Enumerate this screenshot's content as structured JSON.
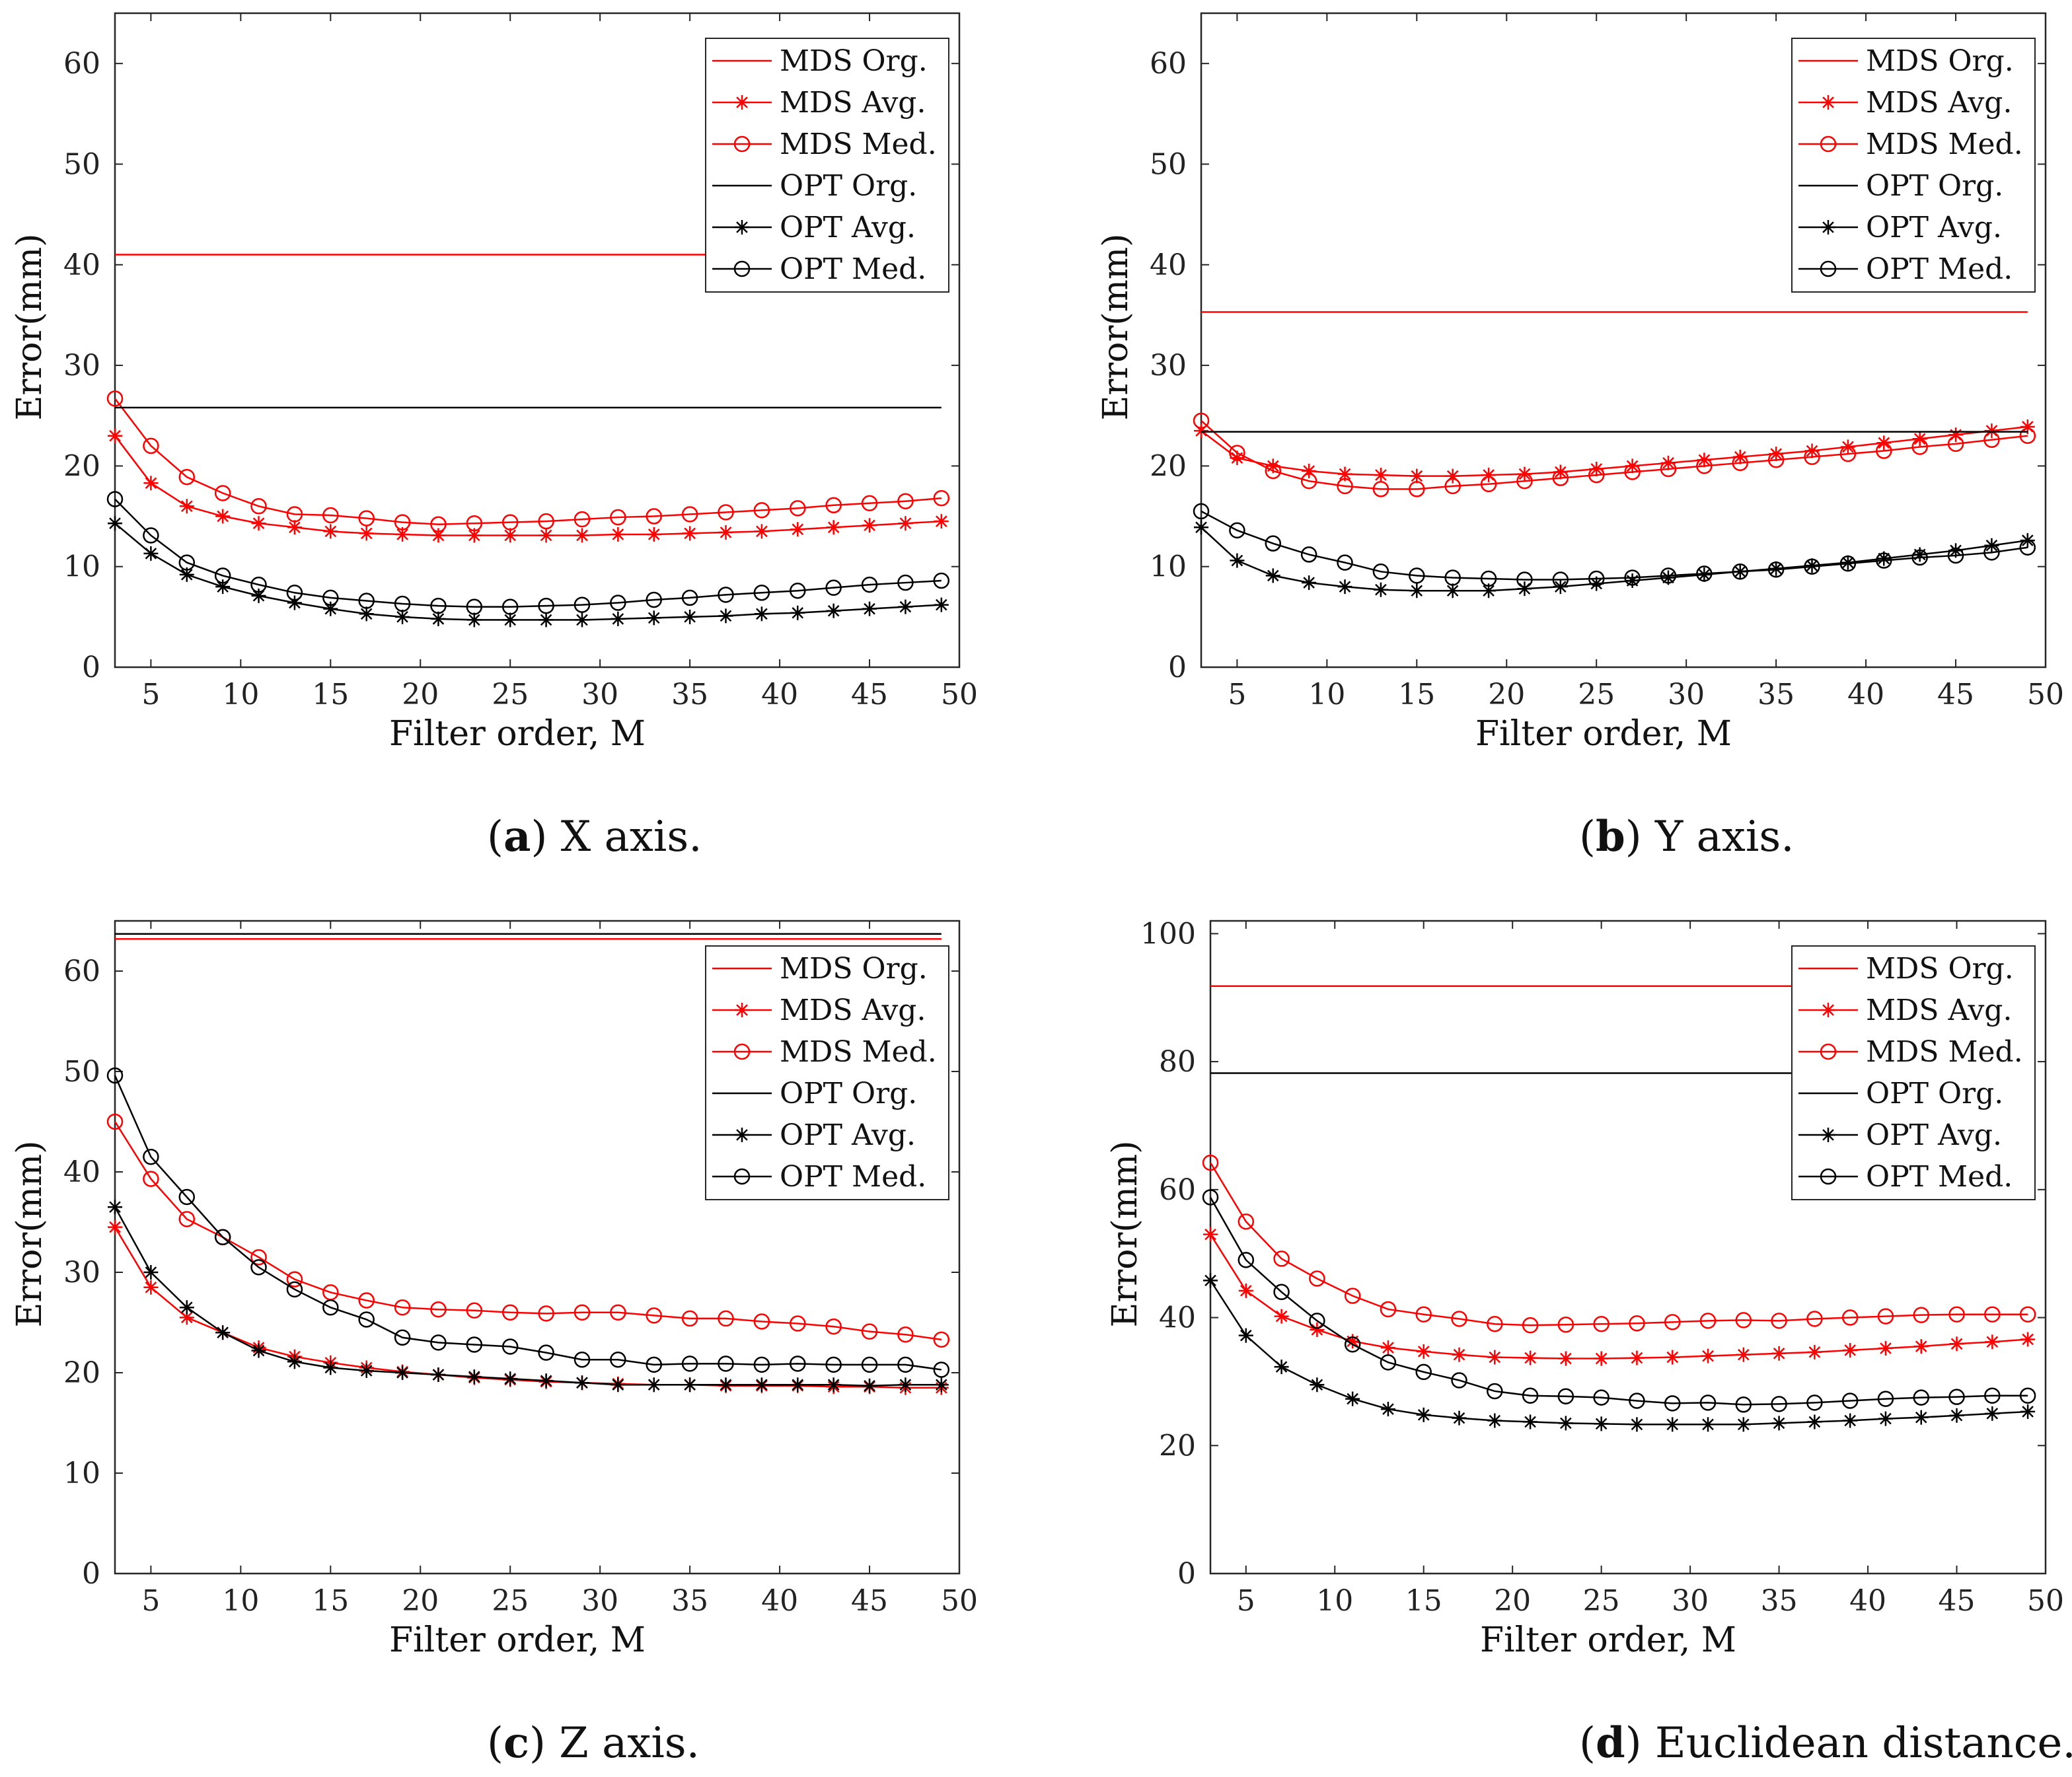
{
  "figure": {
    "panels": [
      "a",
      "b",
      "c",
      "d"
    ]
  },
  "legend_entries": [
    {
      "label": "MDS Org.",
      "color": "#ff0000",
      "marker": "none"
    },
    {
      "label": "MDS Avg.",
      "color": "#ff0000",
      "marker": "star"
    },
    {
      "label": "MDS Med.",
      "color": "#ff0000",
      "marker": "circle"
    },
    {
      "label": "OPT Org.",
      "color": "#000000",
      "marker": "none"
    },
    {
      "label": "OPT Avg.",
      "color": "#000000",
      "marker": "star"
    },
    {
      "label": "OPT Med.",
      "color": "#000000",
      "marker": "circle"
    }
  ],
  "chart_data": [
    {
      "id": "a",
      "type": "line",
      "caption_letter": "a",
      "caption_text": " X axis.",
      "title": "",
      "xlabel": "Filter order, M",
      "ylabel": "Error(mm)",
      "xlim": [
        3,
        50
      ],
      "ylim": [
        0,
        65
      ],
      "xticks": [
        5,
        10,
        15,
        20,
        25,
        30,
        35,
        40,
        45,
        50
      ],
      "yticks": [
        0,
        10,
        20,
        30,
        40,
        50,
        60
      ],
      "legend_position": "top-right",
      "x": [
        3,
        5,
        7,
        9,
        11,
        13,
        15,
        17,
        19,
        21,
        23,
        25,
        27,
        29,
        31,
        33,
        35,
        37,
        39,
        41,
        43,
        45,
        47,
        49
      ],
      "series": [
        {
          "name": "MDS Org.",
          "color": "#ff0000",
          "marker": "none",
          "constant": 41
        },
        {
          "name": "MDS Avg.",
          "color": "#ff0000",
          "marker": "star",
          "values": [
            23,
            18.3,
            16,
            15,
            14.3,
            13.9,
            13.5,
            13.3,
            13.2,
            13.1,
            13.1,
            13.1,
            13.1,
            13.1,
            13.2,
            13.2,
            13.3,
            13.4,
            13.5,
            13.7,
            13.9,
            14.1,
            14.3,
            14.5
          ]
        },
        {
          "name": "MDS Med.",
          "color": "#ff0000",
          "marker": "circle",
          "values": [
            26.7,
            22,
            18.9,
            17.3,
            16,
            15.2,
            15.1,
            14.8,
            14.4,
            14.2,
            14.3,
            14.4,
            14.5,
            14.7,
            14.9,
            15,
            15.2,
            15.4,
            15.6,
            15.8,
            16.1,
            16.3,
            16.5,
            16.8
          ]
        },
        {
          "name": "OPT Org.",
          "color": "#000000",
          "marker": "none",
          "constant": 25.8
        },
        {
          "name": "OPT Avg.",
          "color": "#000000",
          "marker": "star",
          "values": [
            14.3,
            11.3,
            9.2,
            8,
            7.1,
            6.4,
            5.8,
            5.3,
            5,
            4.8,
            4.7,
            4.7,
            4.7,
            4.7,
            4.8,
            4.9,
            5,
            5.1,
            5.3,
            5.4,
            5.6,
            5.8,
            6,
            6.2
          ]
        },
        {
          "name": "OPT Med.",
          "color": "#000000",
          "marker": "circle",
          "values": [
            16.7,
            13.1,
            10.4,
            9.1,
            8.2,
            7.4,
            6.9,
            6.6,
            6.3,
            6.1,
            6,
            6,
            6.1,
            6.2,
            6.4,
            6.7,
            6.9,
            7.2,
            7.4,
            7.6,
            7.9,
            8.2,
            8.4,
            8.6
          ]
        }
      ]
    },
    {
      "id": "b",
      "type": "line",
      "caption_letter": "b",
      "caption_text": " Y axis.",
      "title": "",
      "xlabel": "Filter order, M",
      "ylabel": "Error(mm)",
      "xlim": [
        3,
        50
      ],
      "ylim": [
        0,
        65
      ],
      "xticks": [
        5,
        10,
        15,
        20,
        25,
        30,
        35,
        40,
        45,
        50
      ],
      "yticks": [
        0,
        10,
        20,
        30,
        40,
        50,
        60
      ],
      "legend_position": "top-right",
      "x": [
        3,
        5,
        7,
        9,
        11,
        13,
        15,
        17,
        19,
        21,
        23,
        25,
        27,
        29,
        31,
        33,
        35,
        37,
        39,
        41,
        43,
        45,
        47,
        49
      ],
      "series": [
        {
          "name": "MDS Org.",
          "color": "#ff0000",
          "marker": "none",
          "constant": 35.3
        },
        {
          "name": "MDS Avg.",
          "color": "#ff0000",
          "marker": "star",
          "values": [
            23.5,
            20.8,
            20,
            19.5,
            19.2,
            19.1,
            19,
            19,
            19.1,
            19.2,
            19.4,
            19.7,
            20,
            20.3,
            20.6,
            20.9,
            21.2,
            21.5,
            21.9,
            22.3,
            22.7,
            23.1,
            23.5,
            23.9
          ]
        },
        {
          "name": "MDS Med.",
          "color": "#ff0000",
          "marker": "circle",
          "values": [
            24.5,
            21.3,
            19.5,
            18.5,
            18,
            17.7,
            17.7,
            18,
            18.2,
            18.5,
            18.8,
            19.1,
            19.4,
            19.7,
            20,
            20.3,
            20.6,
            20.9,
            21.2,
            21.5,
            21.9,
            22.2,
            22.6,
            23
          ]
        },
        {
          "name": "OPT Org.",
          "color": "#000000",
          "marker": "none",
          "constant": 23.4
        },
        {
          "name": "OPT Avg.",
          "color": "#000000",
          "marker": "star",
          "values": [
            13.9,
            10.6,
            9.1,
            8.4,
            8,
            7.7,
            7.6,
            7.6,
            7.6,
            7.8,
            8,
            8.3,
            8.6,
            8.9,
            9.2,
            9.5,
            9.8,
            10.1,
            10.4,
            10.8,
            11.2,
            11.6,
            12.1,
            12.6
          ]
        },
        {
          "name": "OPT Med.",
          "color": "#000000",
          "marker": "circle",
          "values": [
            15.5,
            13.6,
            12.3,
            11.2,
            10.4,
            9.5,
            9.1,
            8.9,
            8.8,
            8.7,
            8.7,
            8.8,
            8.9,
            9.1,
            9.3,
            9.5,
            9.7,
            10,
            10.3,
            10.6,
            10.9,
            11.1,
            11.4,
            11.9
          ]
        }
      ]
    },
    {
      "id": "c",
      "type": "line",
      "caption_letter": "c",
      "caption_text": " Z axis.",
      "title": "",
      "xlabel": "Filter order, M",
      "ylabel": "Error(mm)",
      "xlim": [
        3,
        50
      ],
      "ylim": [
        0,
        65
      ],
      "xticks": [
        5,
        10,
        15,
        20,
        25,
        30,
        35,
        40,
        45,
        50
      ],
      "yticks": [
        0,
        10,
        20,
        30,
        40,
        50,
        60
      ],
      "legend_position": "top-right",
      "x": [
        3,
        5,
        7,
        9,
        11,
        13,
        15,
        17,
        19,
        21,
        23,
        25,
        27,
        29,
        31,
        33,
        35,
        37,
        39,
        41,
        43,
        45,
        47,
        49
      ],
      "series": [
        {
          "name": "MDS Org.",
          "color": "#ff0000",
          "marker": "none",
          "constant": 63.2
        },
        {
          "name": "MDS Avg.",
          "color": "#ff0000",
          "marker": "star",
          "values": [
            34.5,
            28.5,
            25.5,
            24,
            22.5,
            21.6,
            21,
            20.5,
            20.1,
            19.8,
            19.5,
            19.3,
            19.1,
            19,
            18.9,
            18.8,
            18.8,
            18.7,
            18.7,
            18.7,
            18.6,
            18.6,
            18.5,
            18.5
          ]
        },
        {
          "name": "MDS Med.",
          "color": "#ff0000",
          "marker": "circle",
          "values": [
            45,
            39.3,
            35.3,
            33.5,
            31.5,
            29.3,
            28,
            27.2,
            26.5,
            26.3,
            26.2,
            26,
            25.9,
            26,
            26,
            25.7,
            25.4,
            25.4,
            25.1,
            24.9,
            24.6,
            24.1,
            23.8,
            23.3
          ]
        },
        {
          "name": "OPT Org.",
          "color": "#000000",
          "marker": "none",
          "constant": 63.7
        },
        {
          "name": "OPT Avg.",
          "color": "#000000",
          "marker": "star",
          "values": [
            36.5,
            30,
            26.5,
            24,
            22.2,
            21.1,
            20.5,
            20.2,
            20,
            19.8,
            19.6,
            19.4,
            19.2,
            19,
            18.8,
            18.8,
            18.8,
            18.8,
            18.8,
            18.8,
            18.8,
            18.7,
            18.8,
            18.8
          ]
        },
        {
          "name": "OPT Med.",
          "color": "#000000",
          "marker": "circle",
          "values": [
            49.6,
            41.5,
            37.5,
            33.5,
            30.5,
            28.3,
            26.5,
            25.3,
            23.5,
            23,
            22.8,
            22.6,
            22,
            21.3,
            21.3,
            20.8,
            20.9,
            20.9,
            20.8,
            20.9,
            20.8,
            20.8,
            20.8,
            20.3
          ]
        }
      ]
    },
    {
      "id": "d",
      "type": "line",
      "caption_letter": "d",
      "caption_text": " Euclidean distance.",
      "title": "",
      "xlabel": "Filter order, M",
      "ylabel": "Error(mm)",
      "xlim": [
        3,
        50
      ],
      "ylim": [
        0,
        102
      ],
      "xticks": [
        5,
        10,
        15,
        20,
        25,
        30,
        35,
        40,
        45,
        50
      ],
      "yticks": [
        0,
        20,
        40,
        60,
        80,
        100
      ],
      "legend_position": "top-right",
      "x": [
        3,
        5,
        7,
        9,
        11,
        13,
        15,
        17,
        19,
        21,
        23,
        25,
        27,
        29,
        31,
        33,
        35,
        37,
        39,
        41,
        43,
        45,
        47,
        49
      ],
      "series": [
        {
          "name": "MDS Org.",
          "color": "#ff0000",
          "marker": "none",
          "constant": 91.8
        },
        {
          "name": "MDS Avg.",
          "color": "#ff0000",
          "marker": "star",
          "values": [
            53,
            44.2,
            40.2,
            38.1,
            36.3,
            35.3,
            34.7,
            34.2,
            33.8,
            33.7,
            33.6,
            33.6,
            33.7,
            33.8,
            34,
            34.2,
            34.4,
            34.6,
            34.9,
            35.2,
            35.5,
            35.9,
            36.2,
            36.6
          ]
        },
        {
          "name": "MDS Med.",
          "color": "#ff0000",
          "marker": "circle",
          "values": [
            64.2,
            55,
            49.2,
            46.1,
            43.4,
            41.3,
            40.5,
            39.8,
            39,
            38.8,
            38.9,
            39,
            39.1,
            39.3,
            39.5,
            39.6,
            39.5,
            39.8,
            40,
            40.2,
            40.4,
            40.5,
            40.5,
            40.5
          ]
        },
        {
          "name": "OPT Org.",
          "color": "#000000",
          "marker": "none",
          "constant": 78.2
        },
        {
          "name": "OPT Avg.",
          "color": "#000000",
          "marker": "star",
          "values": [
            45.8,
            37.2,
            32.3,
            29.5,
            27.3,
            25.7,
            24.8,
            24.3,
            23.9,
            23.7,
            23.5,
            23.4,
            23.3,
            23.3,
            23.3,
            23.3,
            23.5,
            23.7,
            23.9,
            24.2,
            24.4,
            24.7,
            25,
            25.3
          ]
        },
        {
          "name": "OPT Med.",
          "color": "#000000",
          "marker": "circle",
          "values": [
            58.8,
            49,
            44,
            39.5,
            35.8,
            33,
            31.5,
            30.2,
            28.5,
            27.8,
            27.7,
            27.5,
            27,
            26.6,
            26.7,
            26.4,
            26.5,
            26.7,
            27,
            27.3,
            27.5,
            27.6,
            27.8,
            27.8
          ]
        }
      ]
    }
  ]
}
